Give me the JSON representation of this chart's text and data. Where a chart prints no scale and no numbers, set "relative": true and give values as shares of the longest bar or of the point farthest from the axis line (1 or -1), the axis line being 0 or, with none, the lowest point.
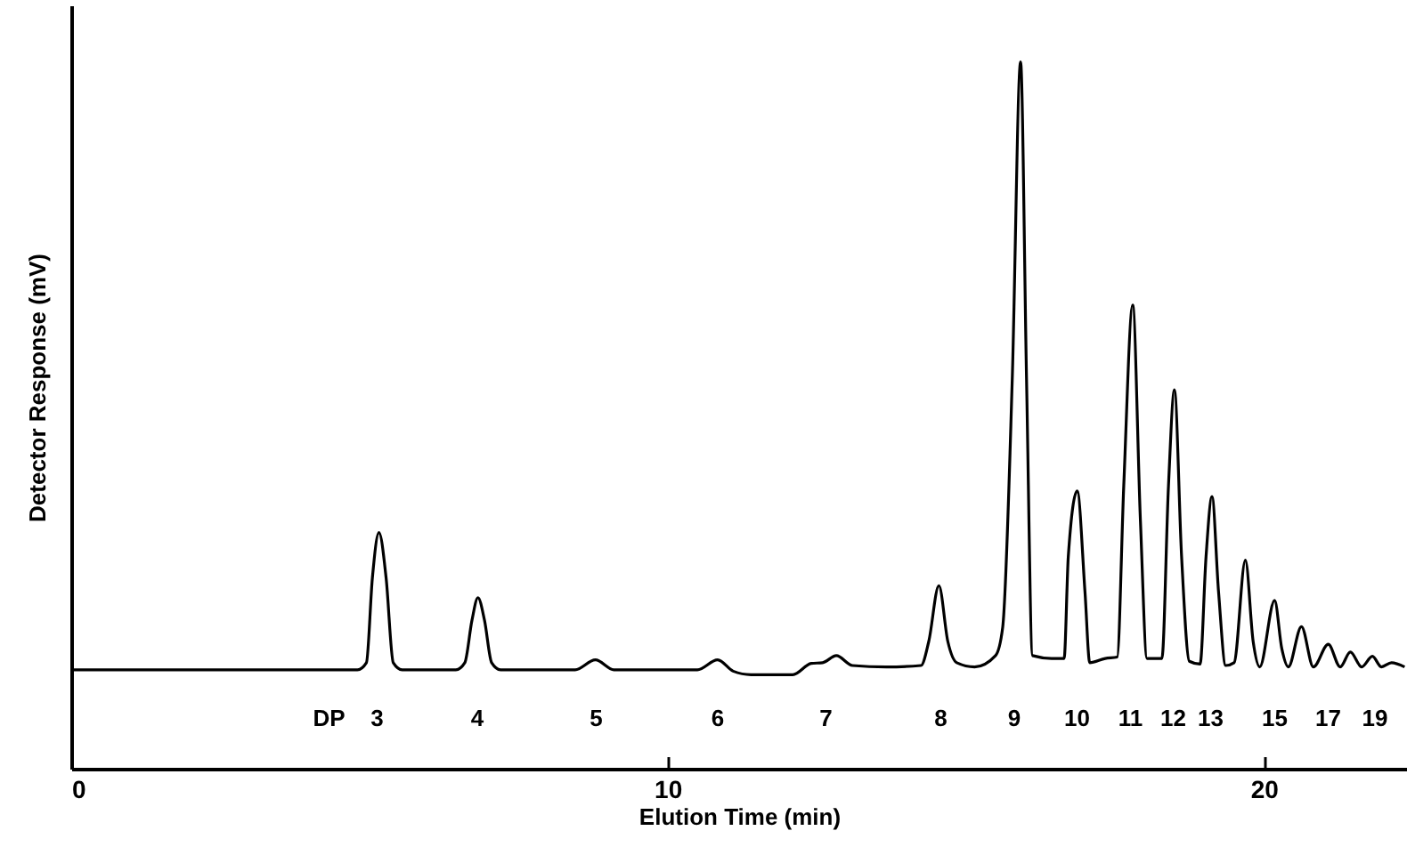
{
  "chart_data": {
    "type": "line",
    "xlabel": "Elution Time (min)",
    "ylabel": "Detector Response (mV)",
    "relative": true,
    "xlim": [
      0,
      22.4
    ],
    "xticks": [
      0,
      10,
      20
    ],
    "grid": false,
    "marker": "none",
    "line_style": "solid",
    "annotations": [
      "DP",
      "3",
      "4",
      "5",
      "6",
      "7",
      "8",
      "9",
      "10",
      "11",
      "12",
      "13",
      "15",
      "17",
      "19"
    ],
    "series": [
      {
        "color": "#000000",
        "x": [
          0,
          4.8,
          4.95,
          5.05,
          5.16,
          5.28,
          5.4,
          5.55,
          6.45,
          6.6,
          6.72,
          6.82,
          6.93,
          7.05,
          7.2,
          8.45,
          8.79,
          9.1,
          10.5,
          10.84,
          11.1,
          11.4,
          12.1,
          12.41,
          12.6,
          12.83,
          13.1,
          13.67,
          14.25,
          14.38,
          14.55,
          14.7,
          14.85,
          15.15,
          15.5,
          15.62,
          15.78,
          15.92,
          16.02,
          16.12,
          16.44,
          16.65,
          16.72,
          16.87,
          17.0,
          17.08,
          17.34,
          17.54,
          17.65,
          17.8,
          17.93,
          18.04,
          18.29,
          18.4,
          18.5,
          18.62,
          18.75,
          18.93,
          19.03,
          19.13,
          19.24,
          19.36,
          19.5,
          19.69,
          19.82,
          19.93,
          20.18,
          20.3,
          20.41,
          20.63,
          20.83,
          21.08,
          21.28,
          21.45,
          21.64,
          21.82,
          21.97,
          22.14,
          22.36
        ],
        "values": [
          0.14,
          0.14,
          0.15,
          0.27,
          0.334,
          0.27,
          0.15,
          0.14,
          0.14,
          0.15,
          0.21,
          0.242,
          0.21,
          0.15,
          0.14,
          0.14,
          0.154,
          0.14,
          0.14,
          0.154,
          0.138,
          0.133,
          0.133,
          0.149,
          0.15,
          0.16,
          0.146,
          0.144,
          0.146,
          0.18,
          0.259,
          0.18,
          0.15,
          0.144,
          0.16,
          0.2,
          0.55,
          1.0,
          0.55,
          0.16,
          0.156,
          0.156,
          0.3,
          0.393,
          0.25,
          0.15,
          0.156,
          0.158,
          0.4,
          0.656,
          0.35,
          0.156,
          0.156,
          0.4,
          0.536,
          0.3,
          0.152,
          0.148,
          0.3,
          0.385,
          0.25,
          0.146,
          0.15,
          0.295,
          0.18,
          0.144,
          0.238,
          0.17,
          0.144,
          0.201,
          0.144,
          0.176,
          0.144,
          0.165,
          0.144,
          0.159,
          0.144,
          0.15,
          0.144
        ]
      }
    ]
  }
}
